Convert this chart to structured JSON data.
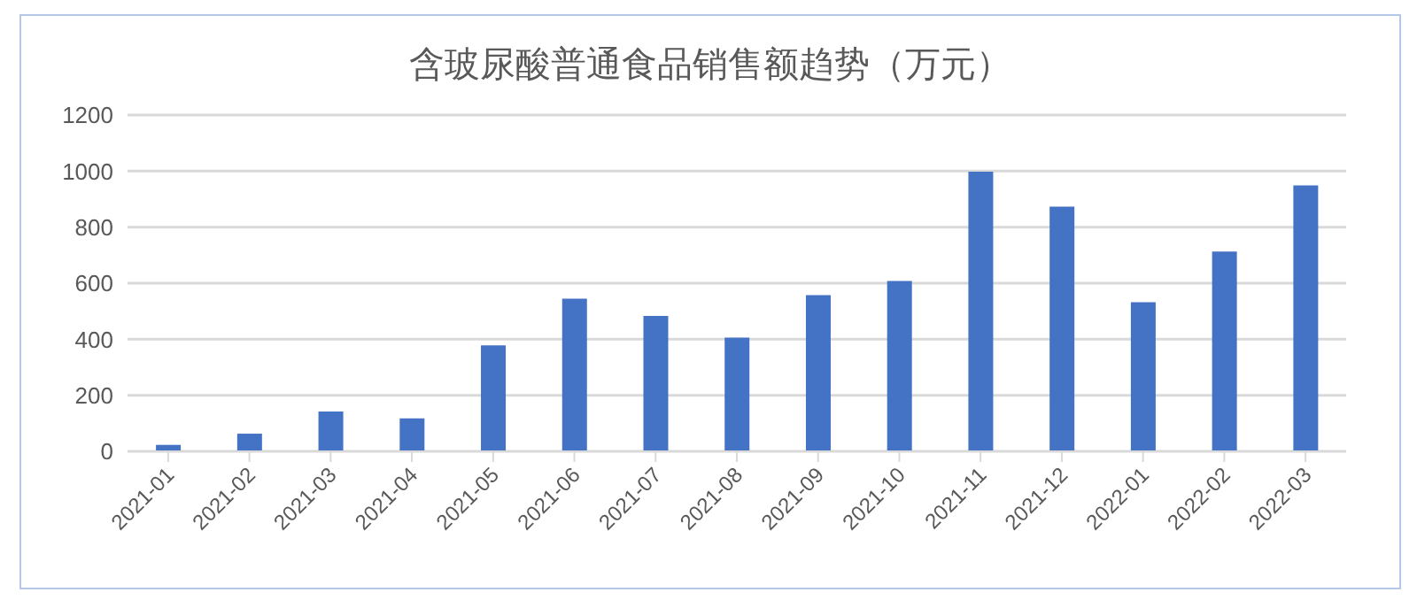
{
  "chart_data": {
    "type": "bar",
    "title": "含玻尿酸普通食品销售额趋势（万元）",
    "categories": [
      "2021-01",
      "2021-02",
      "2021-03",
      "2021-04",
      "2021-05",
      "2021-06",
      "2021-07",
      "2021-08",
      "2021-09",
      "2021-10",
      "2021-11",
      "2021-12",
      "2022-01",
      "2022-02",
      "2022-03"
    ],
    "values": [
      23,
      63,
      142,
      118,
      378,
      545,
      483,
      406,
      557,
      608,
      998,
      873,
      532,
      713,
      949
    ],
    "color": "#4472c4",
    "ylim": [
      0,
      1200
    ],
    "yticks": [
      0,
      200,
      400,
      600,
      800,
      1000,
      1200
    ],
    "grid": "y",
    "legend": false
  }
}
